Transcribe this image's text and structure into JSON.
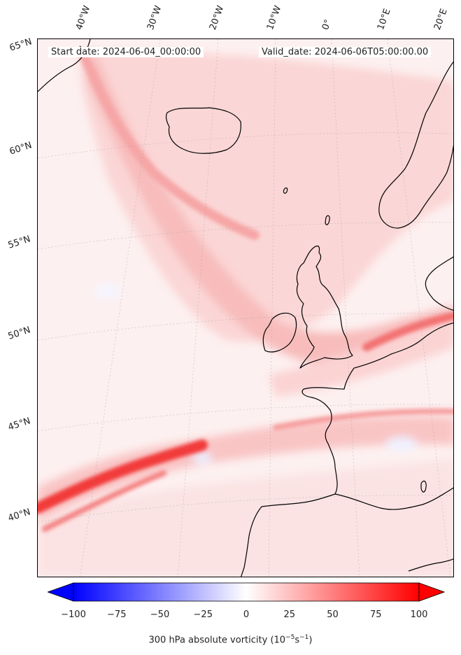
{
  "header": {
    "start_date": "Start date: 2024-06-04_00:00:00",
    "valid_date": "Valid_date: 2024-06-06T05:00:00.00"
  },
  "longitude_labels": [
    "40°W",
    "30°W",
    "20°W",
    "10°W",
    "0°",
    "10°E",
    "20°E"
  ],
  "latitude_labels": [
    "65°N",
    "60°N",
    "55°N",
    "50°N",
    "45°N",
    "40°N"
  ],
  "colorbar": {
    "ticks": [
      "−100",
      "−75",
      "−50",
      "−25",
      "0",
      "25",
      "50",
      "75",
      "100"
    ],
    "label_main": "300 hPa absolute vorticity (10",
    "label_exp1": "−5",
    "label_mid": "s",
    "label_exp2": "−1",
    "label_end": ")",
    "min_value": -100,
    "max_value": 100,
    "colors": {
      "negative": "#0000ff",
      "zero": "#ffffff",
      "positive": "#ff0000"
    }
  },
  "map": {
    "land_outline_color": "#000000",
    "field_colors": {
      "background": "#fdf0f0",
      "band_light": "#fbdada",
      "band_mid": "#f9b8b8",
      "band_strong": "#f55a5a",
      "negative_patch": "#eef2ff"
    }
  }
}
